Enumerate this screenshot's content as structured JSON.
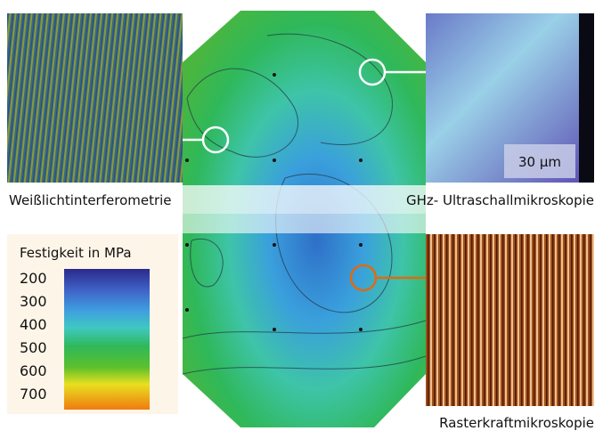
{
  "labels": {
    "white_light": "Weißlichtinterferometrie",
    "ghz": "GHz- Ultraschallmikroskopie",
    "afm": "Rasterkraftmikroskopie",
    "scale_bar": "30 µm"
  },
  "legend": {
    "title": "Festigkeit in MPa",
    "ticks": [
      200,
      300,
      400,
      500,
      600,
      700
    ]
  }
}
